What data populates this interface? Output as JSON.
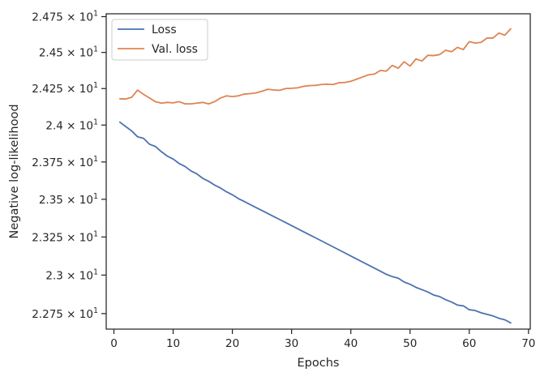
{
  "chart_data": {
    "type": "line",
    "title": "",
    "xlabel": "Epochs",
    "ylabel": "Negative log-likelihood",
    "xlim": [
      -1.3,
      70.3
    ],
    "ylim": [
      22.65,
      24.77
    ],
    "y_scale": "log",
    "x_ticks": [
      0,
      10,
      20,
      30,
      40,
      50,
      60,
      70
    ],
    "x_tick_labels": [
      "0",
      "10",
      "20",
      "30",
      "40",
      "50",
      "60",
      "70"
    ],
    "y_ticks": [
      {
        "value": 22.75,
        "mantissa": "2.275",
        "base": "10",
        "exp": "1"
      },
      {
        "value": 23.0,
        "mantissa": "2.3",
        "base": "10",
        "exp": "1"
      },
      {
        "value": 23.25,
        "mantissa": "2.325",
        "base": "10",
        "exp": "1"
      },
      {
        "value": 23.5,
        "mantissa": "2.35",
        "base": "10",
        "exp": "1"
      },
      {
        "value": 23.75,
        "mantissa": "2.375",
        "base": "10",
        "exp": "1"
      },
      {
        "value": 24.0,
        "mantissa": "2.4",
        "base": "10",
        "exp": "1"
      },
      {
        "value": 24.25,
        "mantissa": "2.425",
        "base": "10",
        "exp": "1"
      },
      {
        "value": 24.5,
        "mantissa": "2.45",
        "base": "10",
        "exp": "1"
      },
      {
        "value": 24.75,
        "mantissa": "2.475",
        "base": "10",
        "exp": "1"
      }
    ],
    "grid": false,
    "legend_position": "top-left",
    "series": [
      {
        "name": "Loss",
        "color": "#4c72b0",
        "x": [
          1,
          2,
          3,
          4,
          5,
          6,
          7,
          8,
          9,
          10,
          11,
          12,
          13,
          14,
          15,
          16,
          17,
          18,
          19,
          20,
          21,
          22,
          23,
          24,
          25,
          26,
          27,
          28,
          29,
          30,
          31,
          32,
          33,
          34,
          35,
          36,
          37,
          38,
          39,
          40,
          41,
          42,
          43,
          44,
          45,
          46,
          47,
          48,
          49,
          50,
          51,
          52,
          53,
          54,
          55,
          56,
          57,
          58,
          59,
          60,
          61,
          62,
          63,
          64,
          65,
          66,
          67
        ],
        "values": [
          24.02,
          23.99,
          23.96,
          23.92,
          23.91,
          23.87,
          23.855,
          23.82,
          23.79,
          23.77,
          23.74,
          23.72,
          23.69,
          23.67,
          23.64,
          23.62,
          23.595,
          23.575,
          23.55,
          23.53,
          23.505,
          23.485,
          23.465,
          23.445,
          23.425,
          23.405,
          23.385,
          23.365,
          23.345,
          23.325,
          23.305,
          23.285,
          23.265,
          23.245,
          23.225,
          23.205,
          23.185,
          23.165,
          23.145,
          23.125,
          23.105,
          23.085,
          23.065,
          23.045,
          23.025,
          23.005,
          22.99,
          22.98,
          22.955,
          22.94,
          22.92,
          22.905,
          22.89,
          22.87,
          22.86,
          22.84,
          22.825,
          22.805,
          22.8,
          22.775,
          22.77,
          22.755,
          22.745,
          22.735,
          22.72,
          22.71,
          22.69
        ]
      },
      {
        "name": "Val. loss",
        "color": "#dd8452",
        "x": [
          1,
          2,
          3,
          4,
          5,
          6,
          7,
          8,
          9,
          10,
          11,
          12,
          13,
          14,
          15,
          16,
          17,
          18,
          19,
          20,
          21,
          22,
          23,
          24,
          25,
          26,
          27,
          28,
          29,
          30,
          31,
          32,
          33,
          34,
          35,
          36,
          37,
          38,
          39,
          40,
          41,
          42,
          43,
          44,
          45,
          46,
          47,
          48,
          49,
          50,
          51,
          52,
          53,
          54,
          55,
          56,
          57,
          58,
          59,
          60,
          61,
          62,
          63,
          64,
          65,
          66,
          67
        ],
        "values": [
          24.18,
          24.178,
          24.19,
          24.24,
          24.21,
          24.185,
          24.16,
          24.15,
          24.155,
          24.152,
          24.16,
          24.145,
          24.145,
          24.15,
          24.155,
          24.145,
          24.16,
          24.185,
          24.2,
          24.195,
          24.2,
          24.212,
          24.215,
          24.22,
          24.232,
          24.245,
          24.24,
          24.238,
          24.25,
          24.252,
          24.255,
          24.265,
          24.27,
          24.272,
          24.278,
          24.28,
          24.278,
          24.29,
          24.292,
          24.3,
          24.315,
          24.33,
          24.345,
          24.35,
          24.375,
          24.37,
          24.41,
          24.39,
          24.435,
          24.405,
          24.455,
          24.44,
          24.48,
          24.478,
          24.485,
          24.515,
          24.505,
          24.535,
          24.52,
          24.575,
          24.565,
          24.57,
          24.6,
          24.6,
          24.635,
          24.62,
          24.665
        ]
      }
    ]
  }
}
